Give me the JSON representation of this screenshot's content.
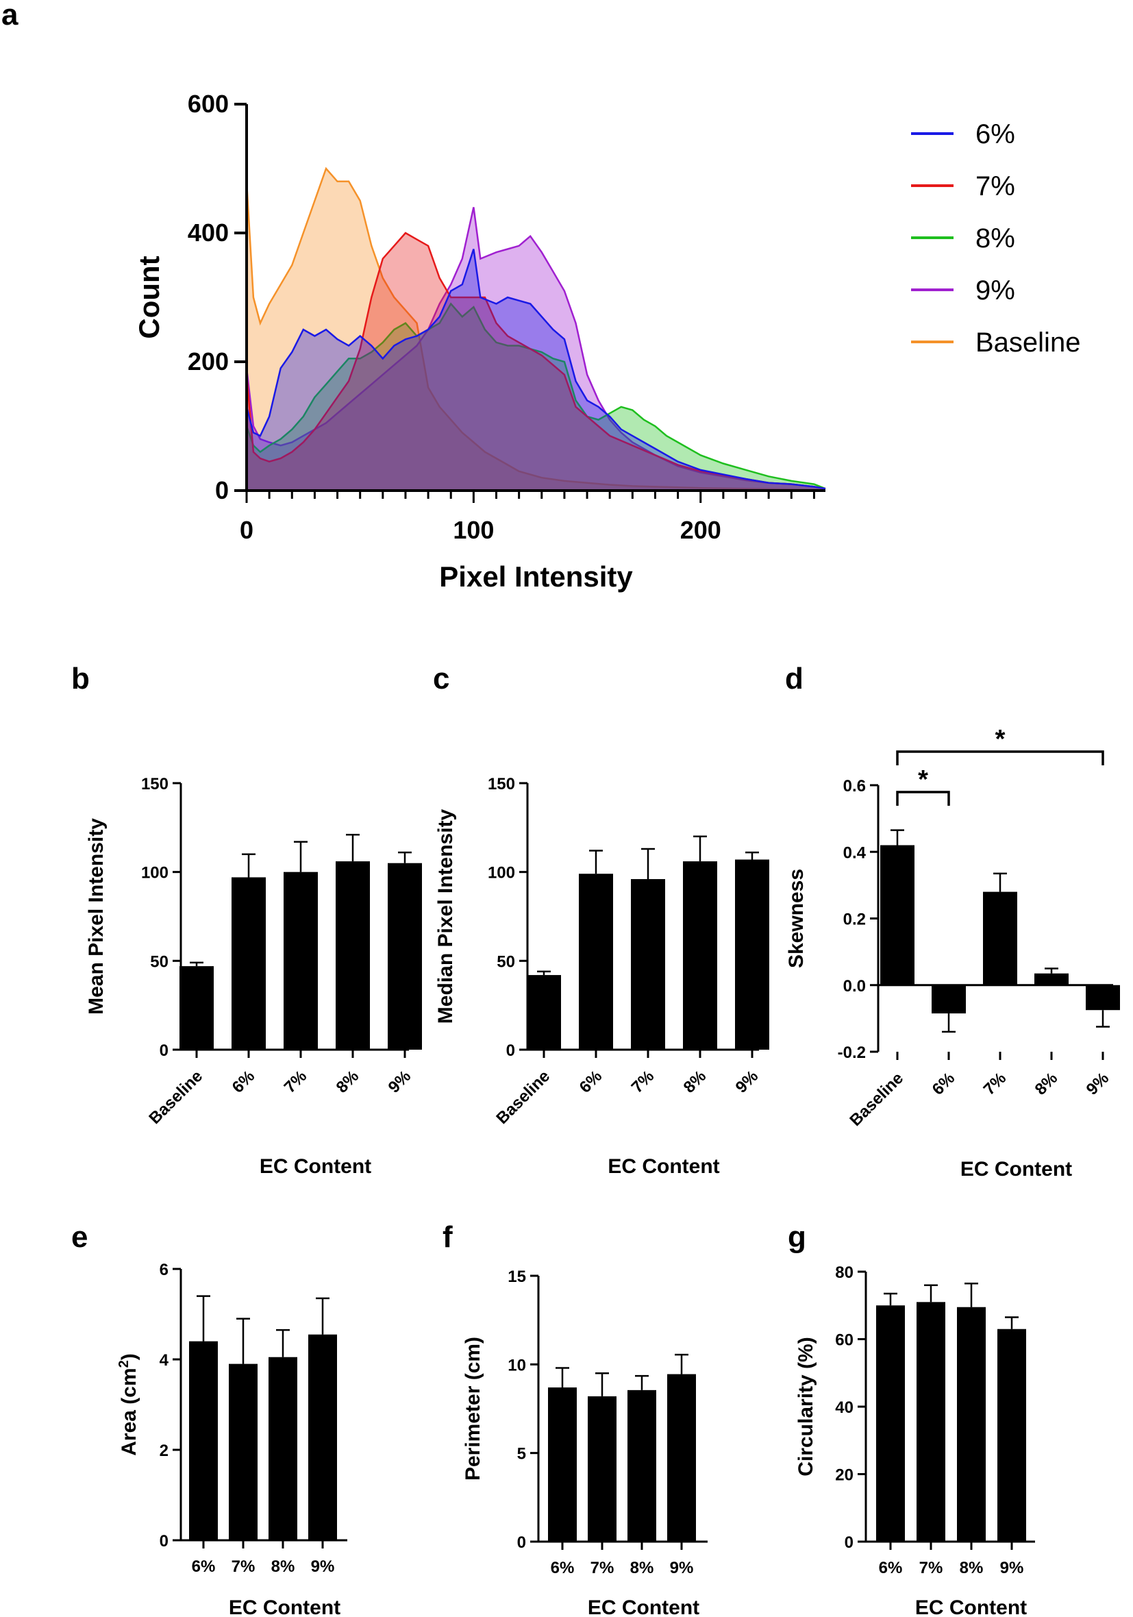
{
  "figure": {
    "panels": {
      "a": "a",
      "b": "b",
      "c": "c",
      "d": "d",
      "e": "e",
      "f": "f",
      "g": "g"
    }
  },
  "chart_data": [
    {
      "id": "a",
      "type": "area",
      "title": "",
      "xlabel": "Pixel Intensity",
      "ylabel": "Count",
      "xlim": [
        0,
        255
      ],
      "ylim": [
        0,
        600
      ],
      "xticks": [
        0,
        100,
        200
      ],
      "yticks": [
        0,
        200,
        400,
        600
      ],
      "legend_position": "right",
      "colors": {
        "6%": "#1a1ae6",
        "7%": "#e61a1a",
        "8%": "#1fbf1f",
        "9%": "#a020d0",
        "Baseline": "#f5922a"
      },
      "series": [
        {
          "name": "6%",
          "points": [
            [
              0,
              130
            ],
            [
              3,
              90
            ],
            [
              6,
              85
            ],
            [
              10,
              115
            ],
            [
              15,
              190
            ],
            [
              20,
              215
            ],
            [
              25,
              250
            ],
            [
              30,
              240
            ],
            [
              35,
              250
            ],
            [
              40,
              235
            ],
            [
              45,
              225
            ],
            [
              50,
              240
            ],
            [
              55,
              225
            ],
            [
              60,
              205
            ],
            [
              65,
              225
            ],
            [
              70,
              235
            ],
            [
              75,
              240
            ],
            [
              80,
              250
            ],
            [
              85,
              270
            ],
            [
              90,
              310
            ],
            [
              95,
              320
            ],
            [
              100,
              375
            ],
            [
              103,
              300
            ],
            [
              110,
              290
            ],
            [
              115,
              300
            ],
            [
              120,
              295
            ],
            [
              125,
              290
            ],
            [
              130,
              270
            ],
            [
              135,
              250
            ],
            [
              140,
              235
            ],
            [
              145,
              170
            ],
            [
              150,
              140
            ],
            [
              155,
              130
            ],
            [
              160,
              115
            ],
            [
              165,
              95
            ],
            [
              170,
              85
            ],
            [
              175,
              75
            ],
            [
              180,
              65
            ],
            [
              190,
              45
            ],
            [
              200,
              32
            ],
            [
              210,
              25
            ],
            [
              220,
              18
            ],
            [
              230,
              12
            ],
            [
              240,
              10
            ],
            [
              250,
              6
            ],
            [
              255,
              3
            ]
          ]
        },
        {
          "name": "7%",
          "points": [
            [
              0,
              180
            ],
            [
              3,
              60
            ],
            [
              6,
              50
            ],
            [
              10,
              45
            ],
            [
              15,
              50
            ],
            [
              20,
              60
            ],
            [
              25,
              75
            ],
            [
              30,
              95
            ],
            [
              35,
              120
            ],
            [
              40,
              145
            ],
            [
              45,
              170
            ],
            [
              50,
              220
            ],
            [
              55,
              300
            ],
            [
              60,
              360
            ],
            [
              65,
              380
            ],
            [
              70,
              400
            ],
            [
              75,
              390
            ],
            [
              80,
              380
            ],
            [
              85,
              330
            ],
            [
              90,
              300
            ],
            [
              95,
              300
            ],
            [
              100,
              300
            ],
            [
              105,
              300
            ],
            [
              110,
              260
            ],
            [
              115,
              240
            ],
            [
              120,
              230
            ],
            [
              125,
              220
            ],
            [
              130,
              210
            ],
            [
              135,
              195
            ],
            [
              140,
              180
            ],
            [
              145,
              130
            ],
            [
              150,
              115
            ],
            [
              155,
              100
            ],
            [
              160,
              85
            ],
            [
              170,
              70
            ],
            [
              180,
              55
            ],
            [
              190,
              40
            ],
            [
              200,
              30
            ],
            [
              210,
              24
            ],
            [
              220,
              18
            ],
            [
              230,
              12
            ],
            [
              240,
              10
            ],
            [
              250,
              6
            ],
            [
              255,
              3
            ]
          ]
        },
        {
          "name": "8%",
          "points": [
            [
              0,
              100
            ],
            [
              3,
              70
            ],
            [
              6,
              60
            ],
            [
              10,
              70
            ],
            [
              15,
              80
            ],
            [
              20,
              95
            ],
            [
              25,
              115
            ],
            [
              30,
              145
            ],
            [
              35,
              165
            ],
            [
              40,
              185
            ],
            [
              45,
              205
            ],
            [
              50,
              205
            ],
            [
              55,
              215
            ],
            [
              60,
              230
            ],
            [
              65,
              250
            ],
            [
              70,
              260
            ],
            [
              75,
              240
            ],
            [
              80,
              250
            ],
            [
              85,
              260
            ],
            [
              90,
              290
            ],
            [
              95,
              270
            ],
            [
              100,
              285
            ],
            [
              105,
              250
            ],
            [
              110,
              230
            ],
            [
              115,
              225
            ],
            [
              120,
              225
            ],
            [
              125,
              220
            ],
            [
              130,
              215
            ],
            [
              135,
              205
            ],
            [
              140,
              200
            ],
            [
              145,
              140
            ],
            [
              150,
              115
            ],
            [
              155,
              110
            ],
            [
              160,
              120
            ],
            [
              165,
              130
            ],
            [
              170,
              125
            ],
            [
              175,
              110
            ],
            [
              180,
              100
            ],
            [
              185,
              85
            ],
            [
              190,
              75
            ],
            [
              200,
              55
            ],
            [
              210,
              42
            ],
            [
              220,
              32
            ],
            [
              230,
              22
            ],
            [
              240,
              15
            ],
            [
              250,
              10
            ],
            [
              255,
              3
            ]
          ]
        },
        {
          "name": "9%",
          "points": [
            [
              0,
              190
            ],
            [
              3,
              100
            ],
            [
              6,
              80
            ],
            [
              10,
              75
            ],
            [
              15,
              70
            ],
            [
              20,
              75
            ],
            [
              25,
              85
            ],
            [
              30,
              95
            ],
            [
              35,
              105
            ],
            [
              40,
              120
            ],
            [
              45,
              135
            ],
            [
              50,
              150
            ],
            [
              55,
              165
            ],
            [
              60,
              180
            ],
            [
              65,
              195
            ],
            [
              70,
              210
            ],
            [
              75,
              225
            ],
            [
              80,
              250
            ],
            [
              85,
              290
            ],
            [
              90,
              320
            ],
            [
              95,
              360
            ],
            [
              100,
              440
            ],
            [
              103,
              360
            ],
            [
              110,
              370
            ],
            [
              115,
              375
            ],
            [
              120,
              380
            ],
            [
              125,
              395
            ],
            [
              130,
              370
            ],
            [
              135,
              340
            ],
            [
              140,
              310
            ],
            [
              145,
              260
            ],
            [
              150,
              180
            ],
            [
              155,
              140
            ],
            [
              160,
              110
            ],
            [
              165,
              90
            ],
            [
              170,
              75
            ],
            [
              180,
              55
            ],
            [
              190,
              38
            ],
            [
              200,
              28
            ],
            [
              210,
              22
            ],
            [
              220,
              16
            ],
            [
              230,
              12
            ],
            [
              240,
              10
            ],
            [
              250,
              6
            ],
            [
              255,
              3
            ]
          ]
        },
        {
          "name": "Baseline",
          "points": [
            [
              0,
              480
            ],
            [
              3,
              300
            ],
            [
              6,
              260
            ],
            [
              10,
              290
            ],
            [
              15,
              320
            ],
            [
              20,
              350
            ],
            [
              25,
              400
            ],
            [
              30,
              450
            ],
            [
              35,
              500
            ],
            [
              40,
              480
            ],
            [
              45,
              480
            ],
            [
              50,
              450
            ],
            [
              55,
              380
            ],
            [
              60,
              330
            ],
            [
              65,
              300
            ],
            [
              70,
              280
            ],
            [
              75,
              260
            ],
            [
              78,
              200
            ],
            [
              80,
              160
            ],
            [
              85,
              130
            ],
            [
              90,
              110
            ],
            [
              95,
              90
            ],
            [
              100,
              75
            ],
            [
              105,
              60
            ],
            [
              110,
              50
            ],
            [
              115,
              40
            ],
            [
              120,
              30
            ],
            [
              130,
              20
            ],
            [
              140,
              15
            ],
            [
              150,
              12
            ],
            [
              160,
              9
            ],
            [
              170,
              7
            ],
            [
              180,
              6
            ],
            [
              200,
              4
            ],
            [
              220,
              3
            ],
            [
              240,
              2
            ],
            [
              255,
              1
            ]
          ]
        }
      ]
    },
    {
      "id": "b",
      "type": "bar",
      "categories": [
        "Baseline",
        "6%",
        "7%",
        "8%",
        "9%"
      ],
      "values": [
        47,
        97,
        100,
        106,
        105
      ],
      "errors": [
        2,
        13,
        17,
        15,
        6
      ],
      "xlabel": "EC Content",
      "ylabel": "Mean Pixel Intensity",
      "ylim": [
        0,
        150
      ],
      "yticks": [
        0,
        50,
        100,
        150
      ]
    },
    {
      "id": "c",
      "type": "bar",
      "categories": [
        "Baseline",
        "6%",
        "7%",
        "8%",
        "9%"
      ],
      "values": [
        42,
        99,
        96,
        106,
        107
      ],
      "errors": [
        2,
        13,
        17,
        14,
        4
      ],
      "xlabel": "EC Content",
      "ylabel": "Median Pixel Intensity",
      "ylim": [
        0,
        150
      ],
      "yticks": [
        0,
        50,
        100,
        150
      ]
    },
    {
      "id": "d",
      "type": "bar",
      "categories": [
        "Baseline",
        "6%",
        "7%",
        "8%",
        "9%"
      ],
      "values": [
        0.42,
        -0.085,
        0.28,
        0.035,
        -0.075
      ],
      "errors": [
        0.045,
        0.055,
        0.055,
        0.015,
        0.05
      ],
      "xlabel": "EC Content",
      "ylabel": "Skewness",
      "ylim": [
        -0.2,
        0.6
      ],
      "yticks": [
        -0.2,
        0.0,
        0.2,
        0.4,
        0.6
      ],
      "significance": [
        {
          "from": "Baseline",
          "to": "6%",
          "label": "*"
        },
        {
          "from": "Baseline",
          "to": "9%",
          "label": "*"
        }
      ]
    },
    {
      "id": "e",
      "type": "bar",
      "categories": [
        "6%",
        "7%",
        "8%",
        "9%"
      ],
      "values": [
        4.4,
        3.9,
        4.05,
        4.55
      ],
      "errors": [
        1.0,
        1.0,
        0.6,
        0.8
      ],
      "xlabel": "EC Content",
      "ylabel": "Area (cm",
      "ylabel_sup": "2",
      "ylabel_end": ")",
      "ylim": [
        0,
        6
      ],
      "yticks": [
        0,
        2,
        4,
        6
      ]
    },
    {
      "id": "f",
      "type": "bar",
      "categories": [
        "6%",
        "7%",
        "8%",
        "9%"
      ],
      "values": [
        8.7,
        8.2,
        8.55,
        9.45
      ],
      "errors": [
        1.1,
        1.3,
        0.8,
        1.1
      ],
      "xlabel": "EC Content",
      "ylabel": "Perimeter (cm)",
      "ylim": [
        0,
        15
      ],
      "yticks": [
        0,
        5,
        10,
        15
      ]
    },
    {
      "id": "g",
      "type": "bar",
      "categories": [
        "6%",
        "7%",
        "8%",
        "9%"
      ],
      "values": [
        70,
        71,
        69.5,
        63
      ],
      "errors": [
        3.5,
        5,
        7,
        3.5
      ],
      "xlabel": "EC Content",
      "ylabel": "Circularity (%)",
      "ylim": [
        0,
        80
      ],
      "yticks": [
        0,
        20,
        40,
        60,
        80
      ]
    }
  ]
}
